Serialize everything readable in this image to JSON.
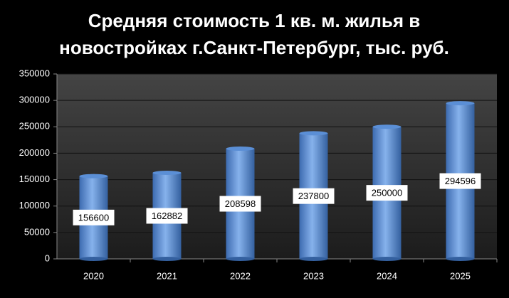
{
  "chart_data": {
    "type": "bar",
    "title": [
      "Средняя стоимость 1 кв. м. жилья в",
      "новостройках  г.Санкт-Петербург, тыс. руб."
    ],
    "categories": [
      "2020",
      "2021",
      "2022",
      "2023",
      "2024",
      "2025"
    ],
    "values": [
      156600,
      162882,
      208598,
      237800,
      250000,
      294596
    ],
    "color": "#5b8fd6",
    "ylim": [
      0,
      350000
    ],
    "yticks": [
      0,
      50000,
      100000,
      150000,
      200000,
      250000,
      300000,
      350000
    ],
    "grid": true
  }
}
